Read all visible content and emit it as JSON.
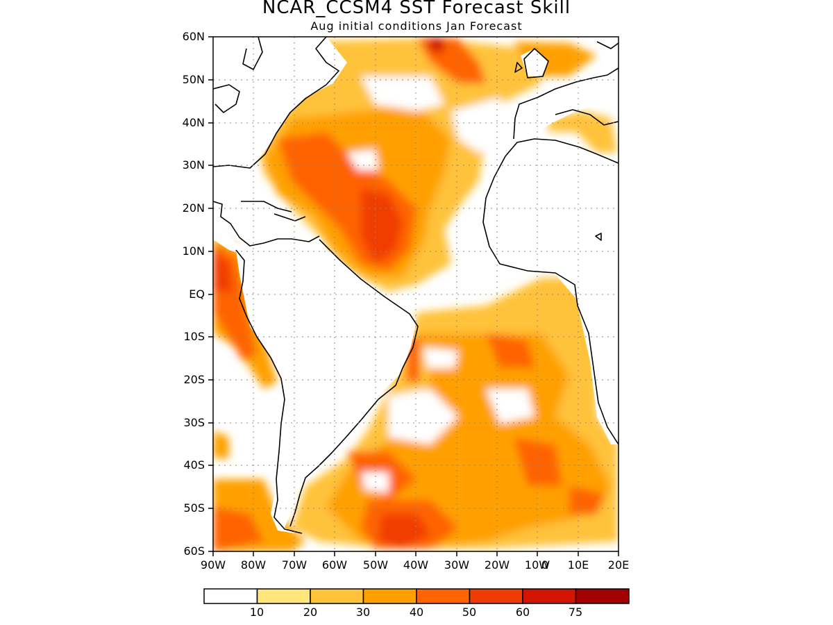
{
  "title": "NCAR_CCSM4 SST Forecast Skill",
  "subtitle": "Aug initial conditions  Jan Forecast",
  "y_axis_labels": [
    "60N",
    "50N",
    "40N",
    "30N",
    "20N",
    "10N",
    "EQ",
    "10S",
    "20S",
    "30S",
    "40S",
    "50S",
    "60S"
  ],
  "x_axis_labels": [
    "90W",
    "80W",
    "70W",
    "60W",
    "50W",
    "40W",
    "30W",
    "20W",
    "10W",
    "0",
    "10E",
    "20E"
  ],
  "colorbar": {
    "labels": [
      "10",
      "20",
      "30",
      "40",
      "50",
      "60",
      "75"
    ],
    "colors": [
      "#ffffff",
      "#ffe57a",
      "#ffc23a",
      "#ffa000",
      "#ff6400",
      "#f03c00",
      "#d21400",
      "#a00000"
    ]
  }
}
